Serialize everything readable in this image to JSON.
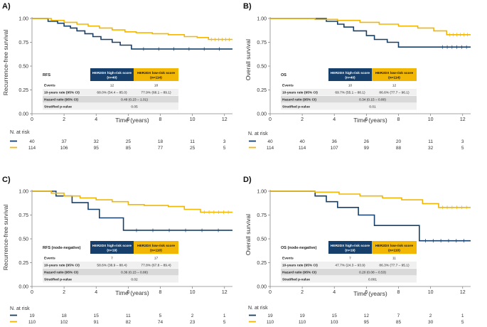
{
  "colors": {
    "high": "#16406b",
    "low": "#f2b705",
    "row_light": "#f0f0f0",
    "row_dark": "#d9d9d9"
  },
  "chart_data": [
    {
      "type": "line",
      "panel_label": "A)",
      "title": "",
      "xlabel": "Time (years)",
      "ylabel": "Recurrence-free survival",
      "xlim": [
        0,
        12.5
      ],
      "ylim": [
        0,
        1
      ],
      "xticks": [
        0,
        2,
        4,
        6,
        8,
        10,
        12
      ],
      "yticks": [
        "0.00",
        "0.25",
        "0.50",
        "0.75",
        "1.00"
      ],
      "series": [
        {
          "name": "HER2DX high-risk score",
          "group": "high",
          "x": [
            0,
            1.0,
            1.0,
            1.6,
            1.6,
            2.0,
            2.0,
            2.4,
            2.4,
            2.8,
            2.8,
            3.3,
            3.3,
            3.8,
            3.8,
            4.3,
            4.3,
            5.0,
            5.0,
            5.5,
            5.5,
            6.2,
            6.2,
            12.5
          ],
          "y": [
            1.0,
            1.0,
            0.97,
            0.97,
            0.95,
            0.95,
            0.92,
            0.92,
            0.9,
            0.9,
            0.87,
            0.87,
            0.84,
            0.84,
            0.81,
            0.81,
            0.78,
            0.78,
            0.75,
            0.75,
            0.72,
            0.72,
            0.68,
            0.68
          ]
        },
        {
          "name": "HER2DX low-risk score",
          "group": "low",
          "x": [
            0,
            1.2,
            1.2,
            2.0,
            2.0,
            2.8,
            2.8,
            3.5,
            3.5,
            4.2,
            4.2,
            5.0,
            5.0,
            5.8,
            5.8,
            6.5,
            6.5,
            7.5,
            7.5,
            8.5,
            8.5,
            9.5,
            9.5,
            10.3,
            10.3,
            11.0,
            11.0,
            12.5
          ],
          "y": [
            1.0,
            1.0,
            0.98,
            0.98,
            0.96,
            0.96,
            0.94,
            0.94,
            0.92,
            0.92,
            0.9,
            0.9,
            0.88,
            0.88,
            0.86,
            0.86,
            0.85,
            0.85,
            0.84,
            0.84,
            0.83,
            0.83,
            0.81,
            0.81,
            0.8,
            0.8,
            0.78,
            0.78
          ]
        }
      ],
      "table": {
        "name": "RFS",
        "high_header": "HER2DX high-risk score (n=40)",
        "low_header": "HER2DX low-risk score (n=114)",
        "events_label": "Events",
        "events_high": "12",
        "events_low": "18",
        "rate_label": "10-years rate (95% CI)",
        "rate_high": "68.0% (54.4 – 85.0)",
        "rate_low": "77.9% (68.1 – 89.1)",
        "hr_label": "Hazard ratio (95% CI)",
        "hr_value": "0.48 (0.23 – 1.01)",
        "p_label": "Stratified p-value",
        "p_value": "0.05"
      },
      "risk_label": "N. at risk",
      "risk_high": [
        "40",
        "37",
        "32",
        "25",
        "18",
        "11",
        "3"
      ],
      "risk_low": [
        "114",
        "106",
        "95",
        "85",
        "77",
        "25",
        "5"
      ]
    },
    {
      "type": "line",
      "panel_label": "B)",
      "title": "",
      "xlabel": "Time (years)",
      "ylabel": "Overall survival",
      "xlim": [
        0,
        12.5
      ],
      "ylim": [
        0,
        1
      ],
      "xticks": [
        0,
        2,
        4,
        6,
        8,
        10,
        12
      ],
      "yticks": [
        "0.00",
        "0.25",
        "0.50",
        "0.75",
        "1.00"
      ],
      "series": [
        {
          "name": "HER2DX high-risk score",
          "group": "high",
          "x": [
            0,
            3.5,
            3.5,
            4.2,
            4.2,
            4.6,
            4.6,
            5.2,
            5.2,
            6.0,
            6.0,
            6.5,
            6.5,
            7.3,
            7.3,
            8.0,
            8.0,
            10.5,
            10.5,
            12.5
          ],
          "y": [
            1.0,
            1.0,
            0.97,
            0.97,
            0.94,
            0.94,
            0.91,
            0.91,
            0.87,
            0.87,
            0.82,
            0.82,
            0.78,
            0.78,
            0.75,
            0.75,
            0.7,
            0.7,
            0.7,
            0.7
          ]
        },
        {
          "name": "HER2DX low-risk score",
          "group": "low",
          "x": [
            0,
            2.8,
            2.8,
            4.2,
            4.2,
            5.6,
            5.6,
            6.8,
            6.8,
            8.0,
            8.0,
            9.2,
            9.2,
            10.2,
            10.2,
            11.0,
            11.0,
            12.5
          ],
          "y": [
            1.0,
            1.0,
            0.99,
            0.99,
            0.98,
            0.98,
            0.96,
            0.96,
            0.94,
            0.94,
            0.92,
            0.92,
            0.9,
            0.9,
            0.87,
            0.87,
            0.83,
            0.83
          ]
        }
      ],
      "table": {
        "name": "OS",
        "high_header": "HER2DX high-risk score (n=40)",
        "low_header": "HER2DX low-risk score (n=114)",
        "events_label": "Events",
        "events_high": "10",
        "events_low": "12",
        "rate_label": "10-years rate (95% CI)",
        "rate_high": "69.7% (55.1 – 88.1)",
        "rate_low": "86.6% (77.7 – 96.1)",
        "hr_label": "Hazard ratio (95% CI)",
        "hr_value": "0.34 (0.15 – 0.80)",
        "p_label": "Stratified p-value",
        "p_value": "0.01"
      },
      "risk_label": "N. at risk",
      "risk_high": [
        "40",
        "40",
        "36",
        "26",
        "20",
        "11",
        "3"
      ],
      "risk_low": [
        "114",
        "114",
        "107",
        "99",
        "88",
        "32",
        "5"
      ]
    },
    {
      "type": "line",
      "panel_label": "C)",
      "title": "",
      "xlabel": "Time (years)",
      "ylabel": "Recurrence-free survival",
      "xlim": [
        0,
        12.5
      ],
      "ylim": [
        0,
        1
      ],
      "xticks": [
        0,
        2,
        4,
        6,
        8,
        10,
        12
      ],
      "yticks": [
        "0.00",
        "0.25",
        "0.50",
        "0.75",
        "1.00"
      ],
      "series": [
        {
          "name": "HER2DX high-risk score",
          "group": "high",
          "x": [
            0,
            1.5,
            1.5,
            2.5,
            2.5,
            3.5,
            3.5,
            4.2,
            4.2,
            5.7,
            5.7,
            12.5
          ],
          "y": [
            1.0,
            1.0,
            0.95,
            0.95,
            0.88,
            0.88,
            0.81,
            0.81,
            0.72,
            0.72,
            0.59,
            0.59
          ]
        },
        {
          "name": "HER2DX low-risk score",
          "group": "low",
          "x": [
            0,
            1.2,
            1.2,
            2.0,
            2.0,
            3.0,
            3.0,
            4.0,
            4.0,
            5.0,
            5.0,
            6.0,
            6.0,
            7.0,
            7.0,
            8.5,
            8.5,
            9.5,
            9.5,
            10.5,
            10.5,
            12.5
          ],
          "y": [
            1.0,
            1.0,
            0.98,
            0.98,
            0.95,
            0.95,
            0.93,
            0.93,
            0.91,
            0.91,
            0.89,
            0.89,
            0.86,
            0.86,
            0.85,
            0.85,
            0.84,
            0.84,
            0.81,
            0.81,
            0.78,
            0.78
          ]
        }
      ],
      "table": {
        "name": "RFS (node-negative)",
        "high_header": "HER2DX high-risk score (n=19)",
        "low_header": "HER2DX low-risk score (n=110)",
        "events_label": "Events",
        "events_high": "7",
        "events_low": "17",
        "rate_label": "10-years rate (95% CI)",
        "rate_high": "58.6% (38.9 – 88.4)",
        "rate_low": "77.8% (67.8 – 89.4)",
        "hr_label": "Hazard ratio (95% CI)",
        "hr_value": "0.36 (0.15 – 0.86)",
        "p_label": "Stratified p-value",
        "p_value": "0.02"
      },
      "risk_label": "N. at risk",
      "risk_high": [
        "19",
        "18",
        "15",
        "11",
        "5",
        "2",
        "1"
      ],
      "risk_low": [
        "110",
        "102",
        "91",
        "82",
        "74",
        "23",
        "5"
      ]
    },
    {
      "type": "line",
      "panel_label": "D)",
      "title": "",
      "xlabel": "Time (years)",
      "ylabel": "Overall survival",
      "xlim": [
        0,
        12.5
      ],
      "ylim": [
        0,
        1
      ],
      "xticks": [
        0,
        2,
        4,
        6,
        8,
        10,
        12
      ],
      "yticks": [
        "0.00",
        "0.25",
        "0.50",
        "0.75",
        "1.00"
      ],
      "series": [
        {
          "name": "HER2DX high-risk score",
          "group": "high",
          "x": [
            0,
            2.8,
            2.8,
            3.5,
            3.5,
            4.2,
            4.2,
            5.5,
            5.5,
            6.5,
            6.5,
            9.3,
            9.3,
            12.5
          ],
          "y": [
            1.0,
            1.0,
            0.95,
            0.95,
            0.89,
            0.89,
            0.83,
            0.83,
            0.75,
            0.75,
            0.64,
            0.64,
            0.48,
            0.48
          ]
        },
        {
          "name": "HER2DX low-risk score",
          "group": "low",
          "x": [
            0,
            2.8,
            2.8,
            4.3,
            4.3,
            5.6,
            5.6,
            7.0,
            7.0,
            8.2,
            8.2,
            9.5,
            9.5,
            10.5,
            10.5,
            12.5
          ],
          "y": [
            1.0,
            1.0,
            0.99,
            0.99,
            0.97,
            0.97,
            0.95,
            0.95,
            0.93,
            0.93,
            0.91,
            0.91,
            0.87,
            0.87,
            0.83,
            0.83
          ]
        }
      ],
      "table": {
        "name": "OS (node-negative)",
        "high_header": "HER2DX high-risk score (n=19)",
        "low_header": "HER2DX low-risk score (n=110)",
        "events_label": "Events",
        "events_high": "7",
        "events_low": "11",
        "rate_label": "10-years rate (95% CI)",
        "rate_high": "47.7% (24.3 – 93.9)",
        "rate_low": "86.3% (77.7 – 95.1)",
        "hr_label": "Hazard ratio (95% CI)",
        "hr_value": "0.20 (0.08 – 0.53)",
        "p_label": "Stratified p-value",
        "p_value": "0.001"
      },
      "risk_label": "N. at risk",
      "risk_high": [
        "19",
        "19",
        "15",
        "12",
        "7",
        "2",
        "1"
      ],
      "risk_low": [
        "110",
        "110",
        "103",
        "95",
        "85",
        "30",
        "5"
      ]
    }
  ]
}
